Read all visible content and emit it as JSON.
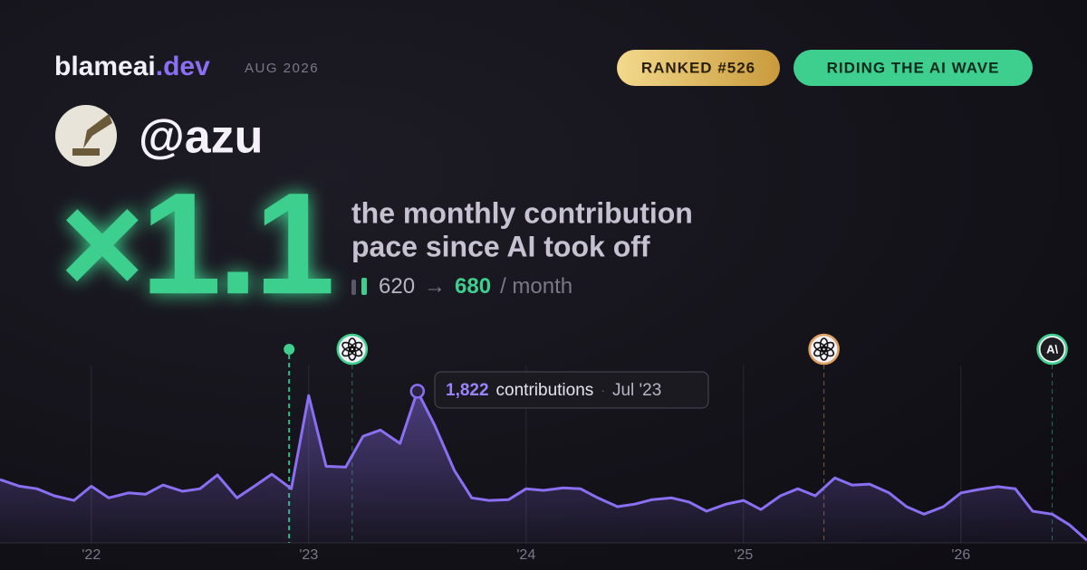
{
  "header": {
    "site": "blameai",
    "site_suffix": ".dev",
    "date": "AUG 2026",
    "badges": [
      "RANKED #526",
      "RIDING THE AI WAVE"
    ]
  },
  "profile": {
    "handle": "@azu"
  },
  "headline": {
    "multiplier": "×1.1",
    "caption": [
      "the monthly contribution",
      "pace since AI took off"
    ],
    "before": 620,
    "arrow": "→",
    "after": 680,
    "unit": "/ month"
  },
  "chart_data": {
    "type": "line",
    "color": "#8b6ff2",
    "grid": true,
    "x": [
      2021.58,
      2021.67,
      2021.75,
      2021.83,
      2021.92,
      2022.0,
      2022.08,
      2022.17,
      2022.25,
      2022.33,
      2022.42,
      2022.5,
      2022.58,
      2022.67,
      2022.75,
      2022.83,
      2022.92,
      2023.0,
      2023.08,
      2023.17,
      2023.25,
      2023.33,
      2023.42,
      2023.5,
      2023.58,
      2023.67,
      2023.75,
      2023.83,
      2023.92,
      2024.0,
      2024.08,
      2024.17,
      2024.25,
      2024.33,
      2024.42,
      2024.5,
      2024.58,
      2024.67,
      2024.75,
      2024.83,
      2024.92,
      2025.0,
      2025.08,
      2025.17,
      2025.25,
      2025.33,
      2025.42,
      2025.5,
      2025.58,
      2025.67,
      2025.75,
      2025.83,
      2025.92,
      2026.0,
      2026.08,
      2026.17,
      2026.25,
      2026.33,
      2026.42,
      2026.5,
      2026.58
    ],
    "values": [
      760,
      680,
      650,
      565,
      510,
      680,
      540,
      600,
      585,
      695,
      620,
      650,
      815,
      540,
      680,
      825,
      650,
      1770,
      920,
      910,
      1280,
      1355,
      1195,
      1822,
      1410,
      870,
      540,
      510,
      520,
      650,
      630,
      660,
      650,
      540,
      435,
      465,
      520,
      540,
      490,
      380,
      465,
      510,
      400,
      565,
      650,
      565,
      780,
      695,
      705,
      600,
      435,
      345,
      435,
      600,
      640,
      675,
      650,
      380,
      345,
      215,
      30
    ],
    "xlim": [
      2021.58,
      2026.58
    ],
    "ylim": [
      0,
      2000
    ],
    "xticks": [
      {
        "value": 2022,
        "label": "'22"
      },
      {
        "value": 2023,
        "label": "'23"
      },
      {
        "value": 2024,
        "label": "'24"
      },
      {
        "value": 2025,
        "label": "'25"
      },
      {
        "value": 2026,
        "label": "'26"
      }
    ],
    "highlight": {
      "x": 2023.5,
      "value": 1822,
      "label": "1,822",
      "text": "contributions",
      "date": "Jul '23"
    },
    "events": [
      {
        "x": 2022.91,
        "kind": "dot",
        "color": "#3ecf8e"
      },
      {
        "x": 2023.2,
        "kind": "openai",
        "color": "#3ecf8e"
      },
      {
        "x": 2025.37,
        "kind": "openai",
        "color": "#e0a060"
      },
      {
        "x": 2026.42,
        "kind": "anthropic",
        "color": "#3ecf8e",
        "label": "A\\"
      }
    ]
  }
}
